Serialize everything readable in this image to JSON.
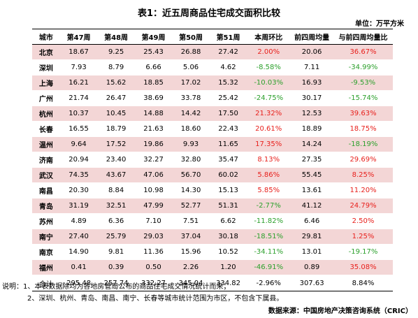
{
  "title": "表1：近五周商品住宅成交面积比较",
  "unit": "单位：万平方米",
  "colors": {
    "shade": "#f3d6d6",
    "up": "#e8201c",
    "down": "#2ca02c"
  },
  "headers": [
    "城市",
    "第47周",
    "第48周",
    "第49周",
    "第50周",
    "第51周",
    "本周环比",
    "前四周均量",
    "与前四周均量比"
  ],
  "rows": [
    {
      "city": "北京",
      "w47": "18.67",
      "w48": "9.25",
      "w49": "25.43",
      "w50": "26.88",
      "w51": "27.42",
      "wow": "2.00%",
      "avg4": "20.06",
      "vs_avg": "36.67%",
      "shaded": true
    },
    {
      "city": "深圳",
      "w47": "7.93",
      "w48": "8.79",
      "w49": "6.66",
      "w50": "5.06",
      "w51": "4.62",
      "wow": "-8.58%",
      "avg4": "7.11",
      "vs_avg": "-34.99%",
      "shaded": false
    },
    {
      "city": "上海",
      "w47": "16.21",
      "w48": "15.62",
      "w49": "18.85",
      "w50": "17.02",
      "w51": "15.32",
      "wow": "-10.03%",
      "avg4": "16.93",
      "vs_avg": "-9.53%",
      "shaded": true
    },
    {
      "city": "广州",
      "w47": "21.74",
      "w48": "26.47",
      "w49": "38.69",
      "w50": "33.78",
      "w51": "25.42",
      "wow": "-24.75%",
      "avg4": "30.17",
      "vs_avg": "-15.74%",
      "shaded": false
    },
    {
      "city": "杭州",
      "w47": "10.37",
      "w48": "10.45",
      "w49": "14.88",
      "w50": "14.42",
      "w51": "17.50",
      "wow": "21.32%",
      "avg4": "12.53",
      "vs_avg": "39.63%",
      "shaded": true
    },
    {
      "city": "长春",
      "w47": "16.55",
      "w48": "18.79",
      "w49": "21.63",
      "w50": "18.60",
      "w51": "22.43",
      "wow": "20.61%",
      "avg4": "18.89",
      "vs_avg": "18.75%",
      "shaded": false
    },
    {
      "city": "温州",
      "w47": "9.64",
      "w48": "17.52",
      "w49": "19.86",
      "w50": "9.93",
      "w51": "11.65",
      "wow": "17.35%",
      "avg4": "14.24",
      "vs_avg": "-18.19%",
      "shaded": true
    },
    {
      "city": "济南",
      "w47": "20.94",
      "w48": "23.40",
      "w49": "32.27",
      "w50": "32.80",
      "w51": "35.47",
      "wow": "8.13%",
      "avg4": "27.35",
      "vs_avg": "29.69%",
      "shaded": false
    },
    {
      "city": "武汉",
      "w47": "74.35",
      "w48": "43.67",
      "w49": "47.06",
      "w50": "56.70",
      "w51": "60.02",
      "wow": "5.86%",
      "avg4": "55.45",
      "vs_avg": "8.25%",
      "shaded": true
    },
    {
      "city": "南昌",
      "w47": "20.30",
      "w48": "8.84",
      "w49": "10.98",
      "w50": "14.30",
      "w51": "15.13",
      "wow": "5.85%",
      "avg4": "13.61",
      "vs_avg": "11.20%",
      "shaded": false
    },
    {
      "city": "青岛",
      "w47": "31.19",
      "w48": "32.51",
      "w49": "47.99",
      "w50": "52.77",
      "w51": "51.31",
      "wow": "-2.77%",
      "avg4": "41.12",
      "vs_avg": "24.79%",
      "shaded": true
    },
    {
      "city": "苏州",
      "w47": "4.89",
      "w48": "6.36",
      "w49": "7.10",
      "w50": "7.51",
      "w51": "6.62",
      "wow": "-11.82%",
      "avg4": "6.46",
      "vs_avg": "2.50%",
      "shaded": false
    },
    {
      "city": "南宁",
      "w47": "27.40",
      "w48": "25.79",
      "w49": "29.03",
      "w50": "37.04",
      "w51": "30.18",
      "wow": "-18.51%",
      "avg4": "29.81",
      "vs_avg": "1.25%",
      "shaded": true
    },
    {
      "city": "南京",
      "w47": "14.90",
      "w48": "9.81",
      "w49": "11.36",
      "w50": "15.96",
      "w51": "10.52",
      "wow": "-34.11%",
      "avg4": "13.01",
      "vs_avg": "-19.17%",
      "shaded": false
    },
    {
      "city": "福州",
      "w47": "0.41",
      "w48": "0.39",
      "w49": "0.50",
      "w50": "2.26",
      "w51": "1.20",
      "wow": "-46.91%",
      "avg4": "0.89",
      "vs_avg": "35.08%",
      "shaded": true
    }
  ],
  "total": {
    "city": "合计",
    "w47": "295.48",
    "w48": "257.74",
    "w49": "332.27",
    "w50": "345.04",
    "w51": "334.82",
    "wow": "-2.96%",
    "avg4": "307.63",
    "vs_avg": "8.84%"
  },
  "notes": [
    "说明：1、本表数据除均为各地房管局公布的商品住宅成交情况统计而来；",
    "2、深圳、杭州、青岛、南昌、南宁、长春等城市统计范围为市区，不包含下属县。"
  ],
  "source": "数据来源：中国房地产决策咨询系统（CRIC）"
}
